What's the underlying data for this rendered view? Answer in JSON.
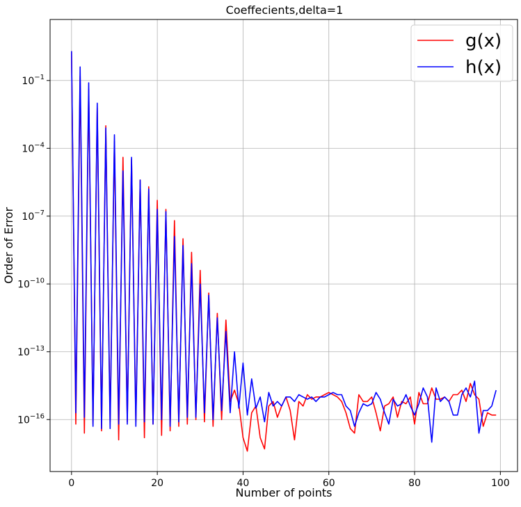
{
  "chart_data": {
    "type": "line",
    "title": "Coeffecients,delta=1",
    "xlabel": "Number of points",
    "ylabel": "Order of Error",
    "xlim": [
      -5,
      104
    ],
    "ylim_log10": [
      -18.3,
      1.7
    ],
    "y_scale": "log",
    "grid": true,
    "legend_position": "top-right",
    "x_ticks": [
      0,
      20,
      40,
      60,
      80,
      100
    ],
    "x_tick_labels": [
      "0",
      "20",
      "40",
      "60",
      "80",
      "100"
    ],
    "y_ticks_log10": [
      -1,
      -4,
      -7,
      -10,
      -13,
      -16
    ],
    "y_tick_labels": [
      {
        "base": "10",
        "exp": "−1"
      },
      {
        "base": "10",
        "exp": "−4"
      },
      {
        "base": "10",
        "exp": "−7"
      },
      {
        "base": "10",
        "exp": "−10"
      },
      {
        "base": "10",
        "exp": "−13"
      },
      {
        "base": "10",
        "exp": "−16"
      }
    ],
    "series": [
      {
        "name": "g(x)",
        "color": "#ff0000",
        "x": [
          0,
          1,
          2,
          3,
          4,
          5,
          6,
          7,
          8,
          9,
          10,
          11,
          12,
          13,
          14,
          15,
          16,
          17,
          18,
          19,
          20,
          21,
          22,
          23,
          24,
          25,
          26,
          27,
          28,
          29,
          30,
          31,
          32,
          33,
          34,
          35,
          36,
          37,
          38,
          39,
          40,
          41,
          42,
          43,
          44,
          45,
          46,
          47,
          48,
          49,
          50,
          51,
          52,
          53,
          54,
          55,
          56,
          57,
          58,
          59,
          60,
          61,
          62,
          63,
          64,
          65,
          66,
          67,
          68,
          69,
          70,
          71,
          72,
          73,
          74,
          75,
          76,
          77,
          78,
          79,
          80,
          81,
          82,
          83,
          84,
          85,
          86,
          87,
          88,
          89,
          90,
          91,
          92,
          93,
          94,
          95,
          96,
          97,
          98,
          99
        ],
        "y_log10": [
          0.3,
          -16.2,
          -0.8,
          -16.6,
          -1.4,
          -16.2,
          -2.2,
          -16.5,
          -3.0,
          -16.1,
          -3.7,
          -16.9,
          -4.4,
          -16.1,
          -4.5,
          -16.1,
          -5.4,
          -16.8,
          -5.7,
          -16.2,
          -6.3,
          -16.7,
          -6.7,
          -16.5,
          -7.2,
          -16.3,
          -8.0,
          -16.2,
          -8.6,
          -16.0,
          -9.4,
          -16.1,
          -10.4,
          -16.3,
          -11.3,
          -16.0,
          -11.6,
          -15.2,
          -14.7,
          -15.3,
          -16.8,
          -17.4,
          -15.7,
          -15.4,
          -16.8,
          -17.3,
          -15.4,
          -15.2,
          -15.9,
          -15.4,
          -15.0,
          -15.6,
          -16.9,
          -15.2,
          -15.4,
          -14.9,
          -15.1,
          -15.0,
          -15.0,
          -14.9,
          -14.8,
          -14.9,
          -15.0,
          -15.2,
          -15.7,
          -16.4,
          -16.6,
          -14.9,
          -15.2,
          -15.2,
          -15.0,
          -15.7,
          -16.5,
          -15.4,
          -15.3,
          -15.0,
          -15.9,
          -15.2,
          -15.3,
          -15.0,
          -16.2,
          -14.8,
          -15.3,
          -15.3,
          -14.6,
          -15.1,
          -15.1,
          -15.0,
          -15.2,
          -14.9,
          -14.9,
          -14.7,
          -15.2,
          -14.4,
          -14.9,
          -15.1,
          -16.3,
          -15.7,
          -15.8,
          -15.8
        ]
      },
      {
        "name": "h(x)",
        "color": "#0000ff",
        "x": [
          0,
          1,
          2,
          3,
          4,
          5,
          6,
          7,
          8,
          9,
          10,
          11,
          12,
          13,
          14,
          15,
          16,
          17,
          18,
          19,
          20,
          21,
          22,
          23,
          24,
          25,
          26,
          27,
          28,
          29,
          30,
          31,
          32,
          33,
          34,
          35,
          36,
          37,
          38,
          39,
          40,
          41,
          42,
          43,
          44,
          45,
          46,
          47,
          48,
          49,
          50,
          51,
          52,
          53,
          54,
          55,
          56,
          57,
          58,
          59,
          60,
          61,
          62,
          63,
          64,
          65,
          66,
          67,
          68,
          69,
          70,
          71,
          72,
          73,
          74,
          75,
          76,
          77,
          78,
          79,
          80,
          81,
          82,
          83,
          84,
          85,
          86,
          87,
          88,
          89,
          90,
          91,
          92,
          93,
          94,
          95,
          96,
          97,
          98,
          99
        ],
        "y_log10": [
          0.3,
          -15.7,
          -0.4,
          -15.9,
          -1.1,
          -16.3,
          -2.0,
          -16.4,
          -3.1,
          -16.4,
          -3.4,
          -16.2,
          -5.0,
          -16.2,
          -4.4,
          -16.3,
          -5.4,
          -16.1,
          -5.8,
          -16.2,
          -6.7,
          -16.0,
          -6.8,
          -16.3,
          -7.9,
          -16.1,
          -8.3,
          -15.9,
          -9.1,
          -15.9,
          -10.0,
          -15.7,
          -10.5,
          -16.0,
          -11.5,
          -15.6,
          -12.1,
          -15.7,
          -13.0,
          -15.5,
          -13.5,
          -15.8,
          -14.2,
          -15.5,
          -15.0,
          -16.1,
          -14.8,
          -15.4,
          -15.2,
          -15.4,
          -15.0,
          -15.0,
          -15.2,
          -14.9,
          -15.0,
          -15.1,
          -15.0,
          -15.2,
          -15.0,
          -15.0,
          -14.9,
          -14.8,
          -14.9,
          -14.9,
          -15.4,
          -15.6,
          -16.3,
          -15.7,
          -15.3,
          -15.4,
          -15.3,
          -14.8,
          -15.1,
          -15.7,
          -16.2,
          -15.1,
          -15.4,
          -15.3,
          -14.9,
          -15.4,
          -15.8,
          -15.3,
          -14.6,
          -15.0,
          -17.0,
          -14.6,
          -15.2,
          -15.0,
          -15.2,
          -15.8,
          -15.8,
          -14.9,
          -14.6,
          -15.0,
          -14.3,
          -16.6,
          -15.6,
          -15.6,
          -15.4,
          -14.7
        ]
      }
    ]
  }
}
